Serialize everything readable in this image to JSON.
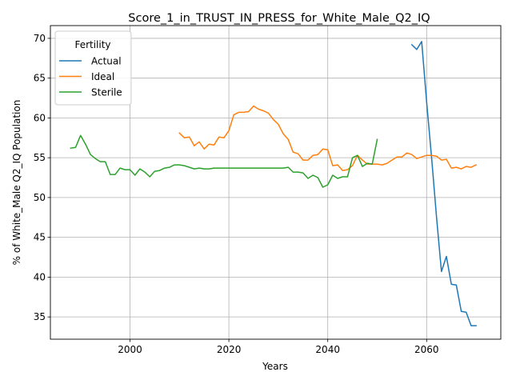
{
  "chart_data": {
    "type": "line",
    "title": "Score_1_in_TRUST_IN_PRESS_for_White_Male_Q2_IQ",
    "xlabel": "Years",
    "ylabel": "% of White_Male Q2_IQ Population",
    "xlim": [
      1983.9,
      2075
    ],
    "ylim": [
      32.2,
      71.6
    ],
    "xticks": [
      2000,
      2020,
      2040,
      2060
    ],
    "yticks": [
      35,
      40,
      45,
      50,
      55,
      60,
      65,
      70
    ],
    "grid": true,
    "legend": {
      "title": "Fertility",
      "placement": "top-left"
    },
    "series": [
      {
        "name": "Actual",
        "color": "#1f77b4",
        "x": [
          2057,
          2058,
          2059,
          2060,
          2061,
          2062,
          2063,
          2064,
          2065,
          2066,
          2067,
          2068,
          2069,
          2070
        ],
        "y": [
          69.2,
          68.6,
          69.6,
          62.0,
          55.0,
          47.5,
          40.7,
          42.6,
          39.1,
          39.0,
          35.7,
          35.6,
          33.9,
          33.9
        ]
      },
      {
        "name": "Ideal",
        "color": "#ff7f0e",
        "x": [
          2010,
          2011,
          2012,
          2013,
          2014,
          2015,
          2016,
          2017,
          2018,
          2019,
          2020,
          2021,
          2022,
          2023,
          2024,
          2025,
          2026,
          2027,
          2028,
          2029,
          2030,
          2031,
          2032,
          2033,
          2034,
          2035,
          2036,
          2037,
          2038,
          2039,
          2040,
          2041,
          2042,
          2043,
          2044,
          2045,
          2046,
          2047,
          2048,
          2049,
          2050,
          2051,
          2052,
          2053,
          2054,
          2055,
          2056,
          2057,
          2058,
          2059,
          2060,
          2061,
          2062,
          2063,
          2064,
          2065,
          2066,
          2067,
          2068,
          2069,
          2070
        ],
        "y": [
          58.1,
          57.5,
          57.6,
          56.5,
          57.0,
          56.1,
          56.7,
          56.6,
          57.6,
          57.5,
          58.4,
          60.4,
          60.7,
          60.7,
          60.8,
          61.5,
          61.1,
          60.9,
          60.6,
          59.8,
          59.2,
          58.0,
          57.3,
          55.7,
          55.5,
          54.7,
          54.7,
          55.3,
          55.4,
          56.1,
          56.0,
          54.0,
          54.1,
          53.4,
          53.5,
          54.0,
          55.3,
          54.7,
          54.2,
          54.2,
          54.2,
          54.1,
          54.3,
          54.7,
          55.1,
          55.1,
          55.6,
          55.4,
          54.9,
          55.1,
          55.3,
          55.3,
          55.2,
          54.7,
          54.8,
          53.7,
          53.8,
          53.6,
          53.9,
          53.8,
          54.1
        ]
      },
      {
        "name": "Sterile",
        "color": "#2ca02c",
        "x": [
          1988,
          1989,
          1990,
          1991,
          1992,
          1993,
          1994,
          1995,
          1996,
          1997,
          1998,
          1999,
          2000,
          2001,
          2002,
          2003,
          2004,
          2005,
          2006,
          2007,
          2008,
          2009,
          2010,
          2011,
          2012,
          2013,
          2014,
          2015,
          2016,
          2017,
          2018,
          2019,
          2020,
          2021,
          2022,
          2023,
          2024,
          2025,
          2026,
          2027,
          2028,
          2029,
          2030,
          2031,
          2032,
          2033,
          2034,
          2035,
          2036,
          2037,
          2038,
          2039,
          2040,
          2041,
          2042,
          2043,
          2044,
          2045,
          2046,
          2047,
          2048,
          2049,
          2050
        ],
        "y": [
          56.2,
          56.3,
          57.8,
          56.7,
          55.4,
          54.9,
          54.5,
          54.5,
          52.9,
          52.9,
          53.7,
          53.5,
          53.5,
          52.8,
          53.6,
          53.2,
          52.6,
          53.3,
          53.4,
          53.7,
          53.8,
          54.1,
          54.1,
          54.0,
          53.8,
          53.6,
          53.7,
          53.6,
          53.6,
          53.7,
          53.7,
          53.7,
          53.7,
          53.7,
          53.7,
          53.7,
          53.7,
          53.7,
          53.7,
          53.7,
          53.7,
          53.7,
          53.7,
          53.7,
          53.8,
          53.2,
          53.2,
          53.1,
          52.4,
          52.8,
          52.5,
          51.3,
          51.6,
          52.8,
          52.4,
          52.6,
          52.6,
          55.0,
          55.3,
          53.9,
          54.3,
          54.2,
          57.3
        ]
      }
    ]
  }
}
